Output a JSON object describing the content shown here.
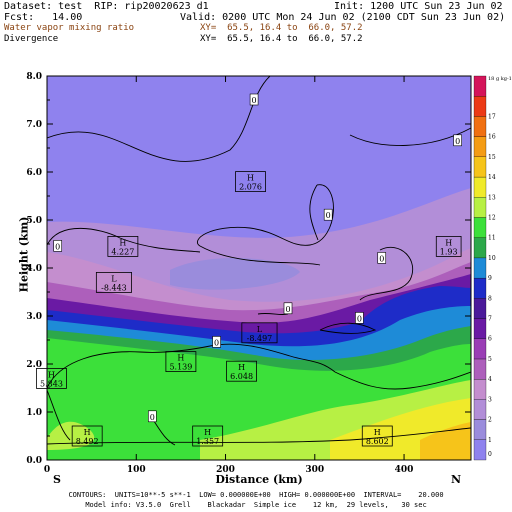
{
  "header": {
    "dataset": "Dataset: test  RIP: rip20020623 d1",
    "init": "Init: 1200 UTC Sun 23 Jun 02",
    "fcst": "Fcst:   14.00",
    "valid": "Valid: 0200 UTC Mon 24 Jun 02 (2100 CDT Sun 23 Jun 02)",
    "field1": "Water vapor mixing ratio",
    "field1_xy": "XY=  65.5, 16.4 to  66.0, 57.2",
    "field2": "Divergence",
    "field2_xy": "XY=  65.5, 16.4 to  66.0, 57.2"
  },
  "footer": {
    "line1": "CONTOURS:  UNITS=10**-5 s**-1  LOW= 0.000000E+00  HIGH= 0.000000E+00  INTERVAL=    20.000",
    "line2": "Model info: V3.5.0  Grell    Blackadar  Simple ice    12 km,  29 levels,   30 sec"
  },
  "chart_data": {
    "type": "heatmap",
    "title": "Water vapor mixing ratio",
    "xlabel": "Distance (km)",
    "ylabel": "Height (km)",
    "xlim": [
      0,
      475
    ],
    "ylim": [
      0.0,
      8.0
    ],
    "x_ticks": [
      0,
      100,
      200,
      300,
      400
    ],
    "y_ticks": [
      "0.0",
      "1.0",
      "2.0",
      "3.0",
      "4.0",
      "5.0",
      "6.0",
      "7.0",
      "8.0"
    ],
    "x_end_labels": [
      "S",
      "N"
    ],
    "colorbar": {
      "unit": "g kg-1",
      "levels": [
        0,
        1,
        2,
        3,
        4,
        5,
        6,
        7,
        8,
        9,
        10,
        11,
        12,
        13,
        14,
        15,
        16,
        17,
        18
      ],
      "colors": [
        "#8f82ee",
        "#9a8cdc",
        "#b28ed8",
        "#c48ece",
        "#ad5fbb",
        "#9a3eb5",
        "#6a1aa4",
        "#4b1a9a",
        "#1e2cc8",
        "#1e8bd7",
        "#2ca84a",
        "#3ce03a",
        "#b7f044",
        "#f0ea2a",
        "#f6c41a",
        "#f49c14",
        "#f07012",
        "#ec3a16",
        "#d4145a"
      ]
    },
    "contour_labels": [
      {
        "text": "0",
        "x": 232,
        "y": 7.5
      },
      {
        "text": "0",
        "x": 460,
        "y": 6.65
      },
      {
        "text": "0",
        "x": 315,
        "y": 5.1
      },
      {
        "text": "0",
        "x": 12,
        "y": 4.45
      },
      {
        "text": "0",
        "x": 375,
        "y": 4.2
      },
      {
        "text": "0",
        "x": 270,
        "y": 3.15
      },
      {
        "text": "0",
        "x": 350,
        "y": 2.95
      },
      {
        "text": "0",
        "x": 190,
        "y": 2.45
      },
      {
        "text": "0",
        "x": 118,
        "y": 0.9
      }
    ],
    "extrema": [
      {
        "type": "H",
        "value": "2.076",
        "x": 228,
        "y": 5.8
      },
      {
        "type": "H",
        "value": "4.227",
        "x": 85,
        "y": 4.45
      },
      {
        "type": "H",
        "value": "1.93",
        "x": 450,
        "y": 4.45
      },
      {
        "type": "L",
        "value": "-8.443",
        "x": 75,
        "y": 3.7
      },
      {
        "type": "L",
        "value": "-8.497",
        "x": 238,
        "y": 2.65
      },
      {
        "type": "H",
        "value": "5.139",
        "x": 150,
        "y": 2.05
      },
      {
        "type": "H",
        "value": "6.048",
        "x": 218,
        "y": 1.85
      },
      {
        "type": "H",
        "value": "5.843",
        "x": 5,
        "y": 1.7
      },
      {
        "type": "H",
        "value": "8.492",
        "x": 45,
        "y": 0.5
      },
      {
        "type": "H",
        "value": "1.357",
        "x": 180,
        "y": 0.5
      },
      {
        "type": "H",
        "value": "8.602",
        "x": 370,
        "y": 0.5
      }
    ]
  }
}
